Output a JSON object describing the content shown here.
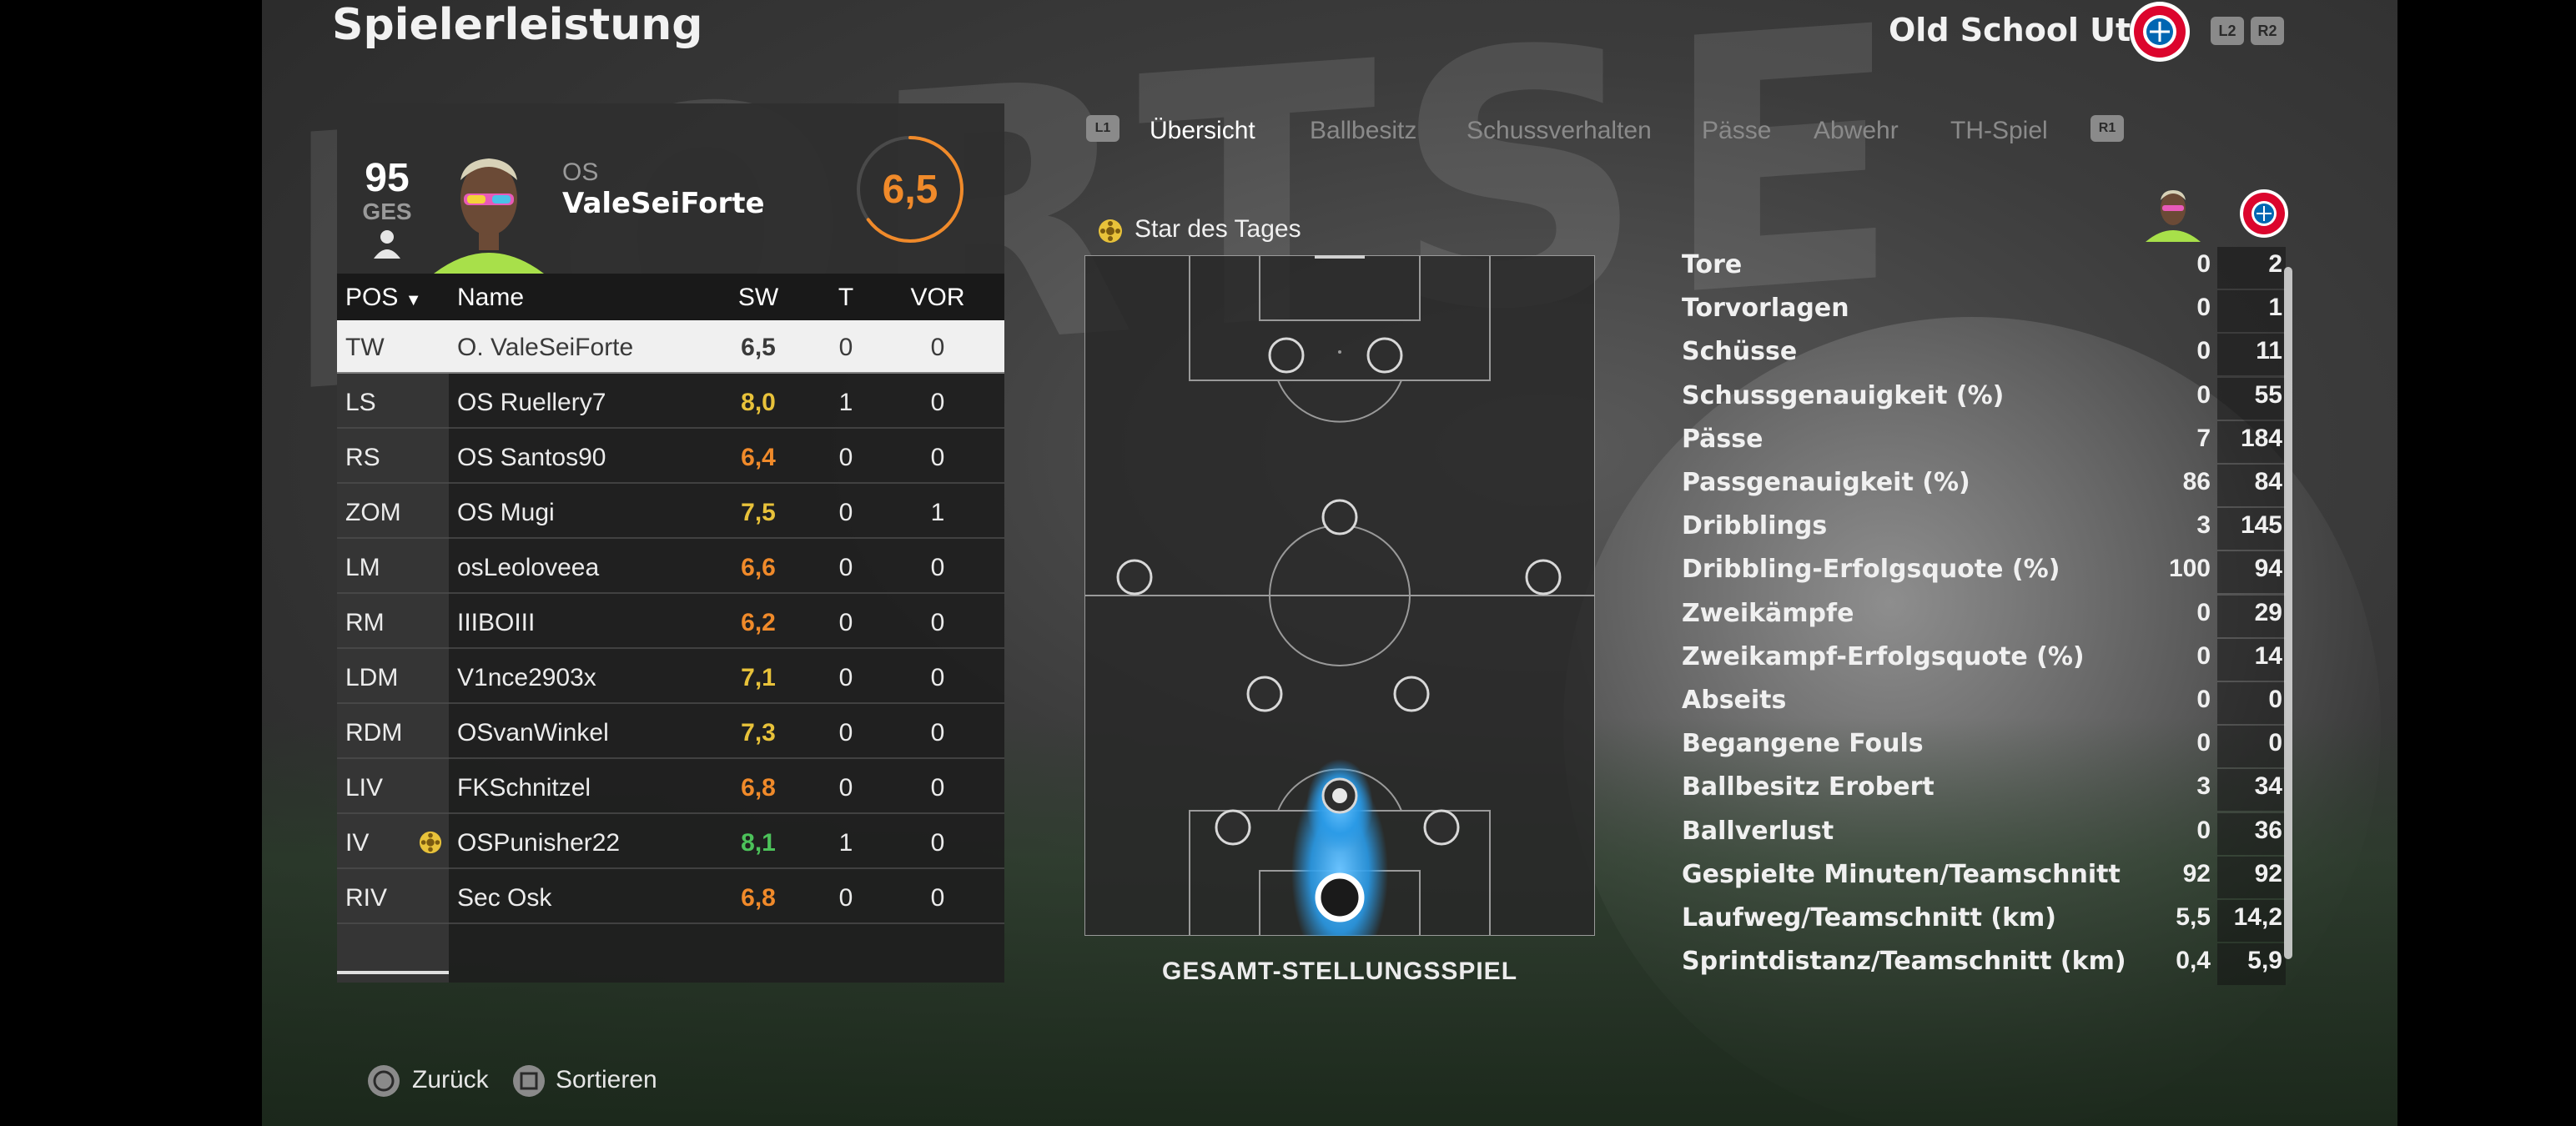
{
  "screen": {
    "title": "Spielerleistung",
    "club_name": "Old School Utd",
    "hints": {
      "left": "L2",
      "right": "R2",
      "tab_left": "L1",
      "tab_right": "R1"
    }
  },
  "player": {
    "ovr": "95",
    "ovr_label": "GES",
    "club_abbr": "OS",
    "name": "ValeSeiForte",
    "match_rating": "6,5",
    "match_rating_value": 6.5
  },
  "table": {
    "headers": {
      "pos": "POS",
      "name": "Name",
      "sw": "SW",
      "t": "T",
      "vor": "VOR"
    },
    "rows": [
      {
        "pos": "TW",
        "name": "O. ValeSeiForte",
        "sw": "6,5",
        "t": "0",
        "vor": "0",
        "sw_color": "#3a3a3a"
      },
      {
        "pos": "LS",
        "name": "OS Ruellery7",
        "sw": "8,0",
        "t": "1",
        "vor": "0",
        "sw_color": "#e8c23a"
      },
      {
        "pos": "RS",
        "name": "OS Santos90",
        "sw": "6,4",
        "t": "0",
        "vor": "0",
        "sw_color": "#f08a2a"
      },
      {
        "pos": "ZOM",
        "name": "OS Mugi",
        "sw": "7,5",
        "t": "0",
        "vor": "1",
        "sw_color": "#e8c23a"
      },
      {
        "pos": "LM",
        "name": "osLeoloveea",
        "sw": "6,6",
        "t": "0",
        "vor": "0",
        "sw_color": "#f08a2a"
      },
      {
        "pos": "RM",
        "name": "IIIBOIII",
        "sw": "6,2",
        "t": "0",
        "vor": "0",
        "sw_color": "#f08a2a"
      },
      {
        "pos": "LDM",
        "name": "V1nce2903x",
        "sw": "7,1",
        "t": "0",
        "vor": "0",
        "sw_color": "#e8c23a"
      },
      {
        "pos": "RDM",
        "name": "OSvanWinkel",
        "sw": "7,3",
        "t": "0",
        "vor": "0",
        "sw_color": "#e8c23a"
      },
      {
        "pos": "LIV",
        "name": "FKSchnitzel",
        "sw": "6,8",
        "t": "0",
        "vor": "0",
        "sw_color": "#f08a2a"
      },
      {
        "pos": "IV",
        "name": "OSPunisher22",
        "sw": "8,1",
        "t": "1",
        "vor": "0",
        "sw_color": "#4cc25a"
      },
      {
        "pos": "RIV",
        "name": "Sec Osk",
        "sw": "6,8",
        "t": "0",
        "vor": "0",
        "sw_color": "#f08a2a"
      }
    ]
  },
  "tabs": [
    "Übersicht",
    "Ballbesitz",
    "Schussverhalten",
    "Pässe",
    "Abwehr",
    "TH-Spiel"
  ],
  "pitch": {
    "star_label": "Star des Tages",
    "caption": "GESAMT-STELLUNGSSPIEL"
  },
  "stats": [
    {
      "label": "Tore",
      "player": "0",
      "team": "2"
    },
    {
      "label": "Torvorlagen",
      "player": "0",
      "team": "1"
    },
    {
      "label": "Schüsse",
      "player": "0",
      "team": "11"
    },
    {
      "label": "Schussgenauigkeit (%)",
      "player": "0",
      "team": "55"
    },
    {
      "label": "Pässe",
      "player": "7",
      "team": "184"
    },
    {
      "label": "Passgenauigkeit (%)",
      "player": "86",
      "team": "84"
    },
    {
      "label": "Dribblings",
      "player": "3",
      "team": "145"
    },
    {
      "label": "Dribbling-Erfolgsquote (%)",
      "player": "100",
      "team": "94"
    },
    {
      "label": "Zweikämpfe",
      "player": "0",
      "team": "29"
    },
    {
      "label": "Zweikampf-Erfolgsquote (%)",
      "player": "0",
      "team": "14"
    },
    {
      "label": "Abseits",
      "player": "0",
      "team": "0"
    },
    {
      "label": "Begangene Fouls",
      "player": "0",
      "team": "0"
    },
    {
      "label": "Ballbesitz Erobert",
      "player": "3",
      "team": "34"
    },
    {
      "label": "Ballverlust",
      "player": "0",
      "team": "36"
    },
    {
      "label": "Gespielte Minuten/Teamschnitt",
      "player": "92",
      "team": "92"
    },
    {
      "label": "Laufweg/Teamschnitt (km)",
      "player": "5,5",
      "team": "14,2"
    },
    {
      "label": "Sprintdistanz/Teamschnitt (km)",
      "player": "0,4",
      "team": "5,9"
    }
  ],
  "footer": {
    "back": "Zurück",
    "sort": "Sortieren"
  },
  "colors": {
    "rating_orange": "#f08a2a",
    "heatmap_blue": "#2a9be8",
    "highlight_row": "#f0f0f0"
  },
  "background_text": "PORTSE"
}
